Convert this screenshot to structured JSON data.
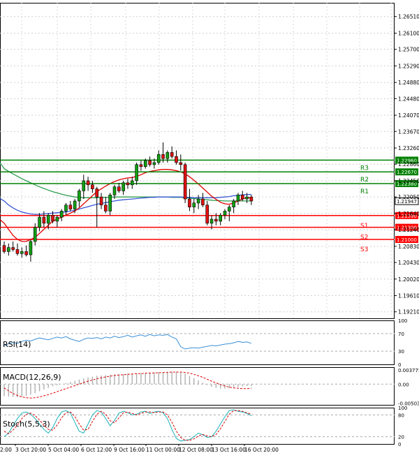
{
  "chart_data": {
    "type": "candlestick",
    "price_axis": {
      "ticks": [
        "1.26510",
        "1.26100",
        "1.25700",
        "1.25290",
        "1.24880",
        "1.24480",
        "1.24070",
        "1.23670",
        "1.23260",
        "1.22860",
        "1.22450",
        "1.22050",
        "1.21640",
        "1.21240",
        "1.20830",
        "1.20430",
        "1.20020",
        "1.19610",
        "1.19210"
      ],
      "ylim": [
        1.1905,
        1.2685
      ]
    },
    "time_axis": {
      "labels": [
        "3 Oct 20:00",
        "5 Oct 04:00",
        "6 Oct 12:00",
        "9 Oct 16:00",
        "11 Oct 00:00",
        "12 Oct 08:00",
        "13 Oct 16:00",
        "16 Oct 20:00"
      ],
      "partial_left_label": "2:00",
      "partial_right_label": ""
    },
    "levels": [
      {
        "name": "R3",
        "value": 1.2296,
        "label": "1.22960",
        "color": "#008000"
      },
      {
        "name": "R2",
        "value": 1.2267,
        "label": "1.22670",
        "color": "#008000"
      },
      {
        "name": "R1",
        "value": 1.2238,
        "label": "1.22380",
        "color": "#008000"
      },
      {
        "name": "S1",
        "value": 1.2159,
        "label": "1.21590",
        "color": "#ff0000"
      },
      {
        "name": "S2",
        "value": 1.213,
        "label": "1.21300",
        "color": "#ff0000"
      },
      {
        "name": "S3",
        "value": 1.21,
        "label": "1.21000",
        "color": "#ff0000"
      }
    ],
    "current_price": {
      "value": 1.21947,
      "label": "1.21947"
    },
    "candles": [
      [
        1.2085,
        1.2095,
        1.2065,
        1.207
      ],
      [
        1.207,
        1.209,
        1.206,
        1.208
      ],
      [
        1.208,
        1.2095,
        1.207,
        1.2075
      ],
      [
        1.2075,
        1.209,
        1.206,
        1.2065
      ],
      [
        1.2065,
        1.208,
        1.2055,
        1.207
      ],
      [
        1.207,
        1.2085,
        1.2058,
        1.2062
      ],
      [
        1.2062,
        1.21,
        1.2045,
        1.2095
      ],
      [
        1.2095,
        1.214,
        1.2085,
        1.213
      ],
      [
        1.213,
        1.2165,
        1.212,
        1.2155
      ],
      [
        1.2155,
        1.217,
        1.213,
        1.214
      ],
      [
        1.214,
        1.2165,
        1.2125,
        1.216
      ],
      [
        1.216,
        1.217,
        1.214,
        1.2145
      ],
      [
        1.2145,
        1.216,
        1.213,
        1.2155
      ],
      [
        1.2155,
        1.2175,
        1.2145,
        1.217
      ],
      [
        1.217,
        1.219,
        1.216,
        1.2185
      ],
      [
        1.2185,
        1.2195,
        1.217,
        1.2175
      ],
      [
        1.2175,
        1.22,
        1.2165,
        1.2195
      ],
      [
        1.2195,
        1.2225,
        1.218,
        1.222
      ],
      [
        1.222,
        1.226,
        1.22,
        1.2245
      ],
      [
        1.2245,
        1.2255,
        1.222,
        1.2235
      ],
      [
        1.2235,
        1.2245,
        1.2215,
        1.2225
      ],
      [
        1.2225,
        1.223,
        1.213,
        1.2205
      ],
      [
        1.2205,
        1.2215,
        1.2175,
        1.2185
      ],
      [
        1.2185,
        1.2205,
        1.2165,
        1.217
      ],
      [
        1.217,
        1.2215,
        1.216,
        1.221
      ],
      [
        1.221,
        1.2235,
        1.22,
        1.223
      ],
      [
        1.223,
        1.224,
        1.2215,
        1.222
      ],
      [
        1.222,
        1.2245,
        1.221,
        1.224
      ],
      [
        1.224,
        1.225,
        1.2225,
        1.2235
      ],
      [
        1.2235,
        1.2255,
        1.2225,
        1.2245
      ],
      [
        1.2245,
        1.229,
        1.2235,
        1.2285
      ],
      [
        1.2285,
        1.2295,
        1.227,
        1.228
      ],
      [
        1.228,
        1.23,
        1.2275,
        1.2295
      ],
      [
        1.2295,
        1.2305,
        1.228,
        1.2285
      ],
      [
        1.2285,
        1.23,
        1.2275,
        1.229
      ],
      [
        1.229,
        1.232,
        1.2285,
        1.231
      ],
      [
        1.231,
        1.234,
        1.229,
        1.23
      ],
      [
        1.23,
        1.232,
        1.229,
        1.2315
      ],
      [
        1.2315,
        1.233,
        1.23,
        1.2305
      ],
      [
        1.2305,
        1.232,
        1.2285,
        1.229
      ],
      [
        1.229,
        1.231,
        1.227,
        1.2285
      ],
      [
        1.2285,
        1.229,
        1.219,
        1.22
      ],
      [
        1.22,
        1.2225,
        1.217,
        1.218
      ],
      [
        1.218,
        1.22,
        1.2165,
        1.219
      ],
      [
        1.219,
        1.221,
        1.2175,
        1.22
      ],
      [
        1.22,
        1.2215,
        1.218,
        1.2185
      ],
      [
        1.2185,
        1.2195,
        1.2135,
        1.214
      ],
      [
        1.214,
        1.216,
        1.2125,
        1.215
      ],
      [
        1.215,
        1.2165,
        1.2135,
        1.2145
      ],
      [
        1.2145,
        1.2165,
        1.2135,
        1.216
      ],
      [
        1.216,
        1.2175,
        1.215,
        1.217
      ],
      [
        1.217,
        1.2185,
        1.2145,
        1.218
      ],
      [
        1.218,
        1.22,
        1.2165,
        1.2195
      ],
      [
        1.2195,
        1.2215,
        1.2185,
        1.221
      ],
      [
        1.221,
        1.222,
        1.2195,
        1.22
      ],
      [
        1.22,
        1.2215,
        1.219,
        1.2205
      ],
      [
        1.2205,
        1.221,
        1.2185,
        1.2195
      ]
    ],
    "ma_red": [
      1.214,
      1.2125,
      1.211,
      1.21,
      1.2095,
      1.2095,
      1.21,
      1.2105,
      1.2115,
      1.2125,
      1.2135,
      1.2145,
      1.215,
      1.2155,
      1.216,
      1.2165,
      1.217,
      1.2178,
      1.2188,
      1.2198,
      1.2208,
      1.2218,
      1.2225,
      1.2232,
      1.2238,
      1.2243,
      1.2247,
      1.225,
      1.2252,
      1.2253,
      1.2256,
      1.226,
      1.2265,
      1.2268,
      1.227,
      1.2272,
      1.2273,
      1.2273,
      1.2272,
      1.227,
      1.2267,
      1.2262,
      1.2255,
      1.2246,
      1.2237,
      1.2227,
      1.2217,
      1.2207,
      1.2199,
      1.2192,
      1.2188,
      1.2187,
      1.219,
      1.2195,
      1.22,
      1.2203,
      1.2203
    ],
    "ma_blue": [
      1.2195,
      1.2185,
      1.2178,
      1.2172,
      1.2168,
      1.2165,
      1.2163,
      1.2162,
      1.2162,
      1.2163,
      1.2164,
      1.2165,
      1.2166,
      1.2167,
      1.2168,
      1.217,
      1.2172,
      1.2175,
      1.2178,
      1.2181,
      1.2184,
      1.2187,
      1.2189,
      1.2191,
      1.2193,
      1.2195,
      1.2197,
      1.2198,
      1.2199,
      1.22,
      1.2201,
      1.2202,
      1.2203,
      1.2204,
      1.2204,
      1.2205,
      1.2205,
      1.2205,
      1.2205,
      1.2205,
      1.2205,
      1.2204,
      1.2204,
      1.2203,
      1.2203,
      1.2203,
      1.2203,
      1.2203,
      1.2203,
      1.2204,
      1.2205,
      1.2206,
      1.2208,
      1.2209,
      1.221,
      1.2211,
      1.2211
    ],
    "ma_green": [
      1.2275,
      1.2268,
      1.2262,
      1.2256,
      1.225,
      1.2245,
      1.224,
      1.2235,
      1.223,
      1.2226,
      1.2222,
      1.2218,
      1.2215,
      1.2212,
      1.2209,
      1.2207,
      1.2205,
      1.2204,
      1.2203,
      1.2203,
      1.2203,
      1.2203,
      1.2204,
      1.2204,
      1.2204,
      1.2205,
      1.2205,
      1.2205,
      1.2205,
      1.2205,
      1.2205,
      1.2205,
      1.2205,
      1.2205,
      1.2205,
      1.2205,
      1.2205,
      1.2205,
      1.2204,
      1.2204,
      1.2204,
      1.2203,
      1.2202,
      1.2201,
      1.22,
      1.2199,
      1.2198,
      1.2197,
      1.2196,
      1.2196,
      1.2195,
      1.2195,
      1.2195,
      1.2195,
      1.2195,
      1.2195,
      1.2195
    ],
    "rsi": {
      "label": "RSI(14)",
      "ticks": [
        "100",
        "70",
        "30",
        "0"
      ],
      "ylim": [
        0,
        100
      ],
      "values": [
        42,
        47,
        50,
        48,
        52,
        55,
        53,
        57,
        60,
        58,
        56,
        59,
        62,
        60,
        63,
        58,
        55,
        52,
        57,
        60,
        59,
        61,
        58,
        62,
        60,
        64,
        61,
        63,
        66,
        62,
        65,
        67,
        64,
        68,
        65,
        67,
        66,
        68,
        62,
        58,
        40,
        35,
        37,
        38,
        37,
        39,
        41,
        43,
        42,
        44,
        46,
        47,
        49,
        52,
        50,
        51,
        48
      ]
    },
    "macd": {
      "label": "MACD(12,26,9)",
      "ticks": [
        "0.003775",
        "0.00",
        "-0.005032"
      ],
      "ylim": [
        -0.0055,
        0.0045
      ],
      "histogram": [
        -0.0032,
        -0.0033,
        -0.0034,
        -0.0034,
        -0.0033,
        -0.0031,
        -0.0028,
        -0.0024,
        -0.0019,
        -0.0014,
        -0.001,
        -0.0006,
        -0.0003,
        0.0,
        0.0003,
        0.0006,
        0.0009,
        0.0012,
        0.0015,
        0.0018,
        0.002,
        0.0022,
        0.0023,
        0.0024,
        0.0025,
        0.0026,
        0.0027,
        0.0027,
        0.0028,
        0.0028,
        0.0029,
        0.0029,
        0.003,
        0.0031,
        0.0031,
        0.0032,
        0.0032,
        0.0033,
        0.0033,
        0.0033,
        0.0032,
        0.0028,
        0.0022,
        0.0016,
        0.001,
        0.0004,
        -0.0002,
        -0.0007,
        -0.001,
        -0.0012,
        -0.0012,
        -0.0011,
        -0.0009,
        -0.0007,
        -0.0006,
        -0.0005,
        -0.0005
      ],
      "signal": [
        -0.001,
        -0.0018,
        -0.0025,
        -0.003,
        -0.0034,
        -0.0036,
        -0.0037,
        -0.0036,
        -0.0034,
        -0.0031,
        -0.0028,
        -0.0024,
        -0.002,
        -0.0016,
        -0.0012,
        -0.0008,
        -0.0004,
        0.0,
        0.0004,
        0.0008,
        0.0011,
        0.0014,
        0.0017,
        0.0019,
        0.0021,
        0.0023,
        0.0024,
        0.0025,
        0.0026,
        0.0027,
        0.0028,
        0.0028,
        0.0029,
        0.0029,
        0.003,
        0.003,
        0.0031,
        0.0031,
        0.0032,
        0.0032,
        0.0032,
        0.0031,
        0.0029,
        0.0026,
        0.0022,
        0.0018,
        0.0013,
        0.0008,
        0.0003,
        -0.0001,
        -0.0005,
        -0.0008,
        -0.001,
        -0.0011,
        -0.0012,
        -0.0012,
        -0.0011
      ]
    },
    "stoch": {
      "label": "Stoch(5,5,3)",
      "ticks": [
        "100",
        "80",
        "20",
        "0"
      ],
      "ylim": [
        0,
        100
      ],
      "main": [
        20,
        30,
        50,
        70,
        85,
        88,
        82,
        70,
        55,
        40,
        30,
        45,
        70,
        88,
        92,
        85,
        60,
        35,
        30,
        55,
        80,
        92,
        88,
        70,
        50,
        65,
        85,
        90,
        86,
        80,
        82,
        88,
        90,
        84,
        88,
        90,
        86,
        70,
        40,
        15,
        8,
        10,
        12,
        20,
        30,
        25,
        18,
        20,
        35,
        55,
        75,
        92,
        94,
        90,
        88,
        84,
        78
      ],
      "signal": [
        35,
        28,
        38,
        52,
        70,
        82,
        85,
        78,
        66,
        52,
        40,
        38,
        52,
        72,
        86,
        88,
        76,
        55,
        38,
        40,
        62,
        82,
        90,
        82,
        64,
        58,
        72,
        86,
        88,
        84,
        80,
        84,
        88,
        88,
        86,
        88,
        88,
        80,
        60,
        35,
        18,
        10,
        10,
        14,
        22,
        26,
        22,
        20,
        26,
        42,
        62,
        82,
        92,
        92,
        90,
        86,
        82
      ]
    }
  }
}
